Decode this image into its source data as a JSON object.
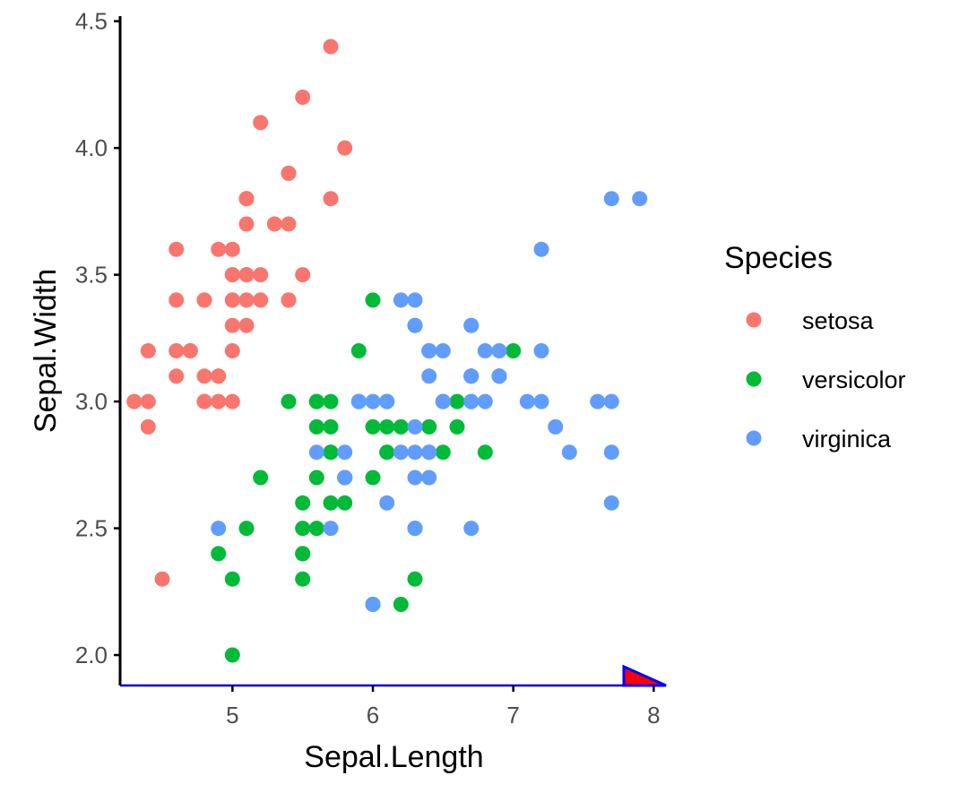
{
  "chart_data": {
    "type": "scatter",
    "title": "",
    "xlabel": "Sepal.Length",
    "ylabel": "Sepal.Width",
    "xlim": [
      4.2,
      8.1
    ],
    "ylim": [
      1.88,
      4.52
    ],
    "x_ticks": [
      5,
      6,
      7,
      8
    ],
    "x_tick_labels": [
      "5",
      "6",
      "7",
      "8"
    ],
    "y_ticks": [
      2.0,
      2.5,
      3.0,
      3.5,
      4.0,
      4.5
    ],
    "y_tick_labels": [
      "2.0",
      "2.5",
      "3.0",
      "3.5",
      "4.0",
      "4.5"
    ],
    "grid": false,
    "legend": {
      "title": "Species",
      "placement": "right"
    },
    "series": [
      {
        "name": "setosa",
        "color": "#F8766D",
        "points": [
          [
            5.1,
            3.5
          ],
          [
            4.9,
            3.0
          ],
          [
            4.7,
            3.2
          ],
          [
            4.6,
            3.1
          ],
          [
            5.0,
            3.6
          ],
          [
            5.4,
            3.9
          ],
          [
            4.6,
            3.4
          ],
          [
            5.0,
            3.4
          ],
          [
            4.4,
            2.9
          ],
          [
            4.9,
            3.1
          ],
          [
            5.4,
            3.7
          ],
          [
            4.8,
            3.4
          ],
          [
            4.8,
            3.0
          ],
          [
            4.3,
            3.0
          ],
          [
            5.8,
            4.0
          ],
          [
            5.7,
            4.4
          ],
          [
            5.4,
            3.9
          ],
          [
            5.1,
            3.5
          ],
          [
            5.7,
            3.8
          ],
          [
            5.1,
            3.8
          ],
          [
            5.4,
            3.4
          ],
          [
            5.1,
            3.7
          ],
          [
            4.6,
            3.6
          ],
          [
            5.1,
            3.3
          ],
          [
            4.8,
            3.4
          ],
          [
            5.0,
            3.0
          ],
          [
            5.0,
            3.4
          ],
          [
            5.2,
            3.5
          ],
          [
            5.2,
            3.4
          ],
          [
            4.7,
            3.2
          ],
          [
            4.8,
            3.1
          ],
          [
            5.4,
            3.4
          ],
          [
            5.2,
            4.1
          ],
          [
            5.5,
            4.2
          ],
          [
            4.9,
            3.1
          ],
          [
            5.0,
            3.2
          ],
          [
            5.5,
            3.5
          ],
          [
            4.9,
            3.6
          ],
          [
            4.4,
            3.0
          ],
          [
            5.1,
            3.4
          ],
          [
            5.0,
            3.5
          ],
          [
            4.5,
            2.3
          ],
          [
            4.4,
            3.2
          ],
          [
            5.0,
            3.5
          ],
          [
            5.1,
            3.8
          ],
          [
            4.8,
            3.0
          ],
          [
            5.1,
            3.8
          ],
          [
            4.6,
            3.2
          ],
          [
            5.3,
            3.7
          ],
          [
            5.0,
            3.3
          ]
        ]
      },
      {
        "name": "versicolor",
        "color": "#00BA38",
        "points": [
          [
            7.0,
            3.2
          ],
          [
            6.4,
            3.2
          ],
          [
            6.9,
            3.1
          ],
          [
            5.5,
            2.3
          ],
          [
            6.5,
            2.8
          ],
          [
            5.7,
            2.8
          ],
          [
            6.3,
            3.3
          ],
          [
            4.9,
            2.4
          ],
          [
            6.6,
            2.9
          ],
          [
            5.2,
            2.7
          ],
          [
            5.0,
            2.0
          ],
          [
            5.9,
            3.0
          ],
          [
            6.0,
            2.2
          ],
          [
            6.1,
            2.9
          ],
          [
            5.6,
            2.9
          ],
          [
            6.7,
            3.1
          ],
          [
            5.6,
            3.0
          ],
          [
            5.8,
            2.7
          ],
          [
            6.2,
            2.2
          ],
          [
            5.6,
            2.5
          ],
          [
            5.9,
            3.2
          ],
          [
            6.1,
            2.8
          ],
          [
            6.3,
            2.5
          ],
          [
            6.1,
            2.8
          ],
          [
            6.4,
            2.9
          ],
          [
            6.6,
            3.0
          ],
          [
            6.8,
            2.8
          ],
          [
            6.7,
            3.0
          ],
          [
            6.0,
            2.9
          ],
          [
            5.7,
            2.6
          ],
          [
            5.5,
            2.4
          ],
          [
            5.5,
            2.4
          ],
          [
            5.8,
            2.7
          ],
          [
            6.0,
            2.7
          ],
          [
            5.4,
            3.0
          ],
          [
            6.0,
            3.4
          ],
          [
            6.7,
            3.1
          ],
          [
            6.3,
            2.3
          ],
          [
            5.6,
            3.0
          ],
          [
            5.5,
            2.5
          ],
          [
            5.5,
            2.6
          ],
          [
            6.1,
            3.0
          ],
          [
            5.8,
            2.6
          ],
          [
            5.0,
            2.3
          ],
          [
            5.6,
            2.7
          ],
          [
            5.7,
            3.0
          ],
          [
            5.7,
            2.9
          ],
          [
            6.2,
            2.9
          ],
          [
            5.1,
            2.5
          ],
          [
            5.7,
            2.8
          ]
        ]
      },
      {
        "name": "virginica",
        "color": "#619CFF",
        "points": [
          [
            6.3,
            3.3
          ],
          [
            5.8,
            2.7
          ],
          [
            7.1,
            3.0
          ],
          [
            6.3,
            2.9
          ],
          [
            6.5,
            3.0
          ],
          [
            7.6,
            3.0
          ],
          [
            4.9,
            2.5
          ],
          [
            7.3,
            2.9
          ],
          [
            6.7,
            2.5
          ],
          [
            7.2,
            3.6
          ],
          [
            6.5,
            3.2
          ],
          [
            6.4,
            2.7
          ],
          [
            6.8,
            3.0
          ],
          [
            5.7,
            2.5
          ],
          [
            5.8,
            2.8
          ],
          [
            6.4,
            3.2
          ],
          [
            6.5,
            3.0
          ],
          [
            7.7,
            3.8
          ],
          [
            7.7,
            2.6
          ],
          [
            6.0,
            2.2
          ],
          [
            6.9,
            3.2
          ],
          [
            5.6,
            2.8
          ],
          [
            7.7,
            2.8
          ],
          [
            6.3,
            2.7
          ],
          [
            6.7,
            3.3
          ],
          [
            7.2,
            3.2
          ],
          [
            6.2,
            2.8
          ],
          [
            6.1,
            3.0
          ],
          [
            6.4,
            2.8
          ],
          [
            7.2,
            3.0
          ],
          [
            7.4,
            2.8
          ],
          [
            7.9,
            3.8
          ],
          [
            6.4,
            2.8
          ],
          [
            6.3,
            2.8
          ],
          [
            6.1,
            2.6
          ],
          [
            7.7,
            3.0
          ],
          [
            6.3,
            3.4
          ],
          [
            6.4,
            3.1
          ],
          [
            6.0,
            3.0
          ],
          [
            6.9,
            3.1
          ],
          [
            6.7,
            3.1
          ],
          [
            6.9,
            3.1
          ],
          [
            5.8,
            2.7
          ],
          [
            6.8,
            3.2
          ],
          [
            6.7,
            3.3
          ],
          [
            6.7,
            3.0
          ],
          [
            6.3,
            2.5
          ],
          [
            6.5,
            3.0
          ],
          [
            6.2,
            3.4
          ],
          [
            5.9,
            3.0
          ]
        ]
      }
    ]
  }
}
